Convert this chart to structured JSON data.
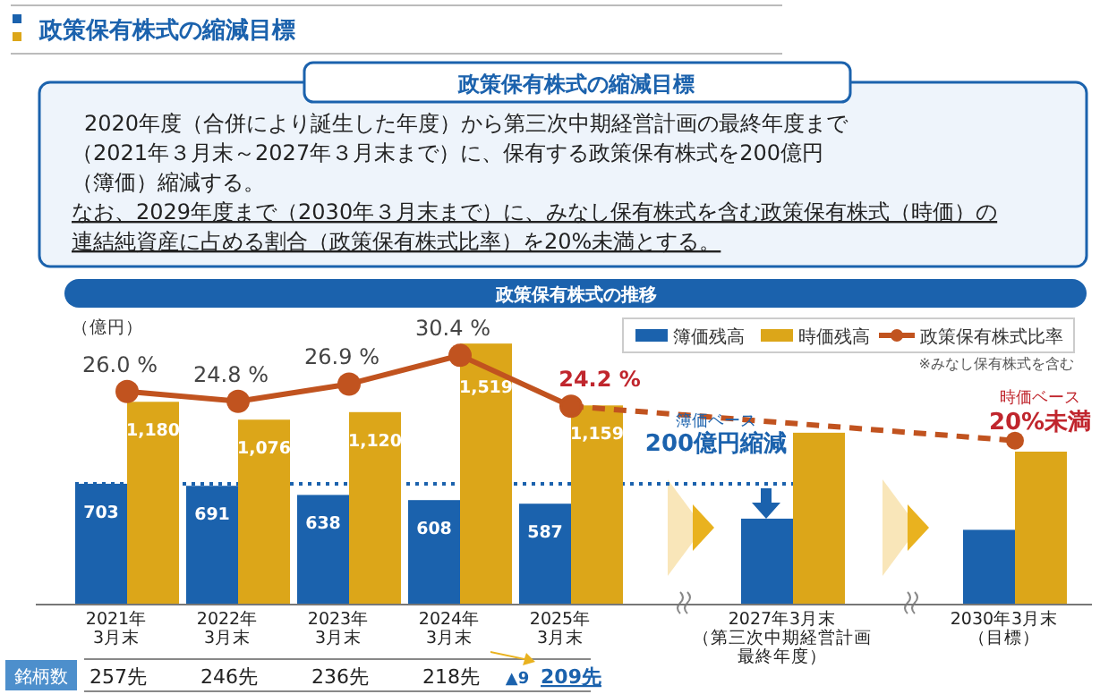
{
  "chart_data": {
    "type": "bar",
    "title": "政策保有株式の縮減目標",
    "ylabel": "（億円）",
    "categories": [
      "2021年3月末",
      "2022年3月末",
      "2023年3月末",
      "2024年3月末",
      "2025年3月末",
      null,
      "2027年3月末（第三次中期経営計画最終年度）",
      null,
      "2030年3月末（目標）"
    ],
    "series": [
      {
        "name": "簿価残高",
        "color": "#1b62ad",
        "values": [
          703,
          691,
          638,
          608,
          587,
          null,
          500,
          null,
          435
        ],
        "value_labels": [
          "703",
          "691",
          "638",
          "608",
          "587",
          null,
          null,
          null,
          null
        ]
      },
      {
        "name": "時価残高",
        "color": "#dca619",
        "values": [
          1180,
          1076,
          1120,
          1519,
          1159,
          null,
          1000,
          null,
          890
        ],
        "value_labels": [
          "1,180",
          "1,076",
          "1,120",
          "1,519",
          "1,159",
          null,
          null,
          null,
          null
        ]
      },
      {
        "name": "政策保有株式比率",
        "type": "line",
        "axis": "y2",
        "color": "#c1531f",
        "marker": "circle",
        "line_style": "solid",
        "values": [
          26.0,
          24.8,
          26.9,
          30.4,
          24.2,
          null,
          null,
          null,
          null
        ],
        "value_labels": [
          "26.0 %",
          "24.8 %",
          "26.9 %",
          "30.4 %",
          "24.2 %",
          null,
          null,
          null,
          null
        ]
      },
      {
        "type": "line",
        "axis": "y2",
        "color": "#c1531f",
        "marker": "circle",
        "line_style": "dashed",
        "values": [
          null,
          null,
          null,
          null,
          24.2,
          null,
          null,
          null,
          20
        ]
      }
    ],
    "ref_lines": [
      {
        "axis": "y",
        "value": 703,
        "color": "#1b62ad",
        "line_style": "dotted"
      }
    ],
    "legend": "top right",
    "annotations": [
      "政策保有株式の縮減目標",
      "2020年度（合併により誕生した年度）から第三次中期経営計画の最終年度まで",
      "（2021年３月末～2027年３月末まで）に、保有する政策保有株式を200億円",
      "（簿価）縮減する。",
      "なお、2029年度まで（2030年３月末まで）に、みなし保有株式を含む政策保有株式（時価）の",
      "連結純資産に占める割合（政策保有株式比率）を20%未満とする。",
      "政策保有株式の推移",
      "※みなし保有株式を含む",
      "簿価ベース",
      "200億円縮減",
      "時価ベース",
      "20%未満",
      "銘柄数",
      "257先",
      "246先",
      "236先",
      "218先",
      "209先",
      "▲9"
    ]
  }
}
